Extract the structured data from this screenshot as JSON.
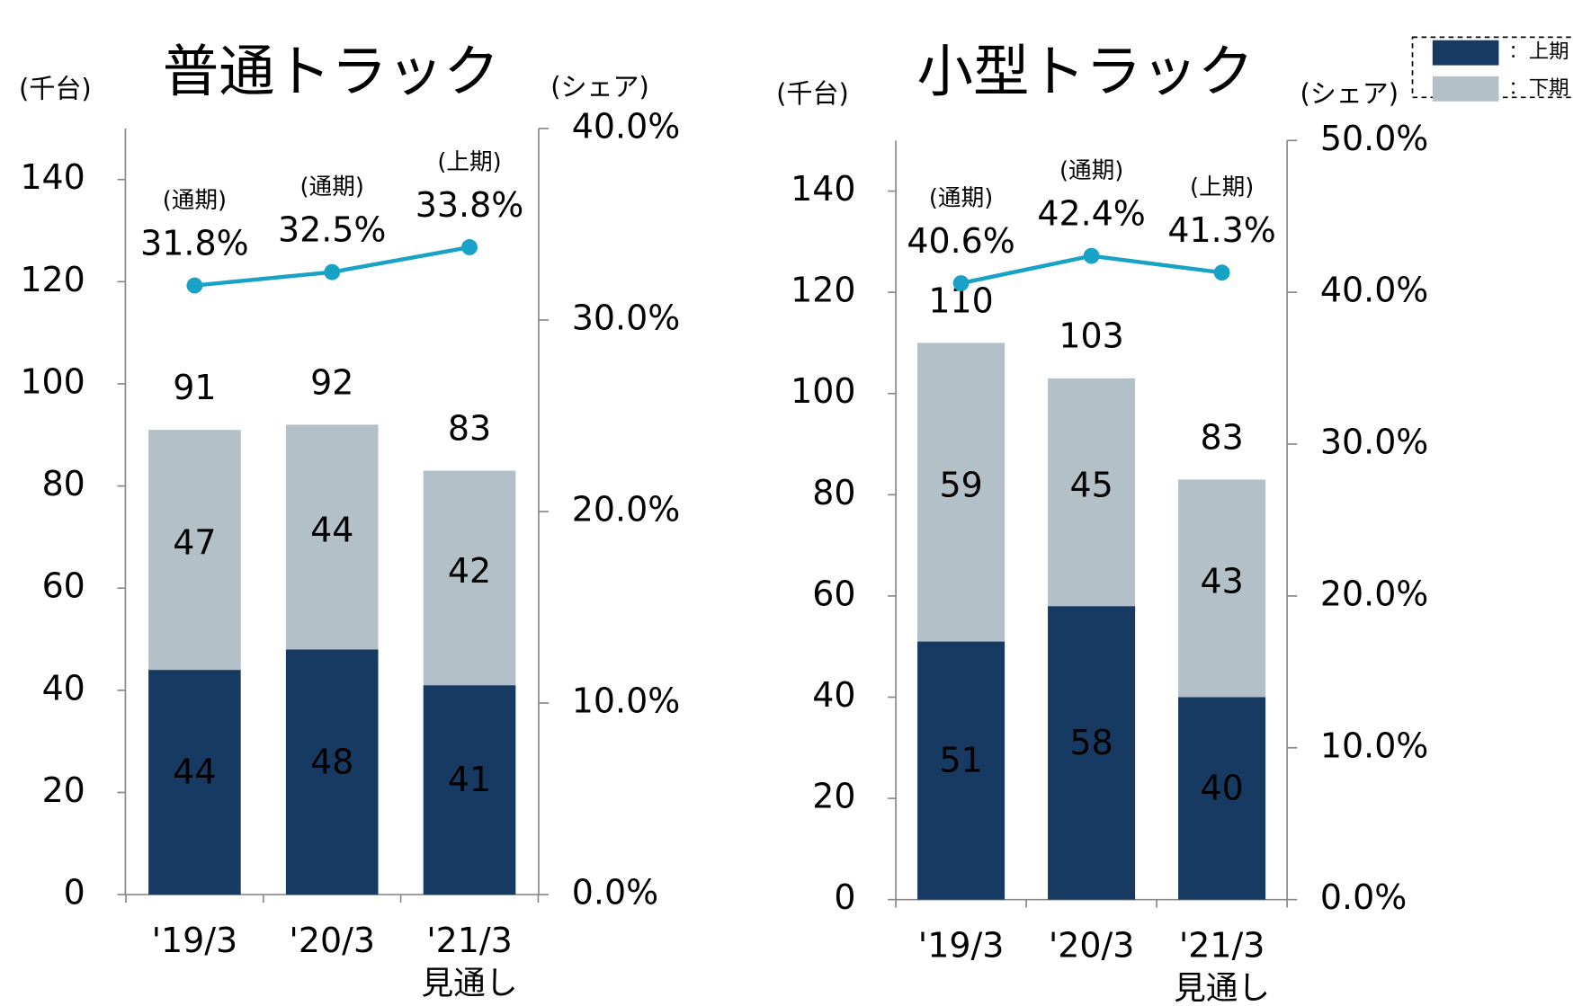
{
  "chart_data": [
    {
      "type": "stacked-bar-line",
      "title": "普通トラック",
      "ylabel": "(千台)",
      "y2label": "(シェア)",
      "categories": [
        "'19/3",
        "'20/3",
        "'21/3"
      ],
      "category_notes": [
        null,
        null,
        "見通し"
      ],
      "series": [
        {
          "name": "上期",
          "color": "#173a62",
          "values": [
            44,
            48,
            41
          ]
        },
        {
          "name": "下期",
          "color": "#b4c0c8",
          "values": [
            47,
            44,
            42
          ]
        }
      ],
      "totals": [
        91,
        92,
        83
      ],
      "line": {
        "color": "#17a2c6",
        "axis": "y2",
        "values": [
          31.8,
          32.5,
          33.8
        ],
        "value_labels": [
          "31.8%",
          "32.5%",
          "33.8%"
        ],
        "annotations": [
          "(通期)",
          "(通期)",
          "(上期)"
        ]
      },
      "ylim": [
        0,
        150
      ],
      "yticks": [
        0,
        20,
        40,
        60,
        80,
        100,
        120,
        140
      ],
      "y2lim": [
        0,
        40
      ],
      "y2ticks": [
        {
          "value": 0,
          "label": "0.0%"
        },
        {
          "value": 10,
          "label": "10.0%"
        },
        {
          "value": 20,
          "label": "20.0%"
        },
        {
          "value": 30,
          "label": "30.0%"
        },
        {
          "value": 40,
          "label": "40.0%"
        }
      ],
      "legend_separator": "：",
      "legend": "top-right"
    },
    {
      "type": "stacked-bar-line",
      "title": "小型トラック",
      "ylabel": "(千台)",
      "y2label": "(シェア)",
      "categories": [
        "'19/3",
        "'20/3",
        "'21/3"
      ],
      "category_notes": [
        null,
        null,
        "見通し"
      ],
      "series": [
        {
          "name": "上期",
          "color": "#173a62",
          "values": [
            51,
            58,
            40
          ]
        },
        {
          "name": "下期",
          "color": "#b4c0c8",
          "values": [
            59,
            45,
            43
          ]
        }
      ],
      "totals": [
        110,
        103,
        83
      ],
      "line": {
        "color": "#17a2c6",
        "axis": "y2",
        "values": [
          40.6,
          42.4,
          41.3
        ],
        "value_labels": [
          "40.6%",
          "42.4%",
          "41.3%"
        ],
        "annotations": [
          "(通期)",
          "(通期)",
          "(上期)"
        ]
      },
      "ylim": [
        0,
        150
      ],
      "yticks": [
        0,
        20,
        40,
        60,
        80,
        100,
        120,
        140
      ],
      "y2lim": [
        0,
        50
      ],
      "y2ticks": [
        {
          "value": 0,
          "label": "0.0%"
        },
        {
          "value": 10,
          "label": "10.0%"
        },
        {
          "value": 20,
          "label": "20.0%"
        },
        {
          "value": 30,
          "label": "30.0%"
        },
        {
          "value": 40,
          "label": "40.0%"
        },
        {
          "value": 50,
          "label": "50.0%"
        }
      ]
    }
  ]
}
